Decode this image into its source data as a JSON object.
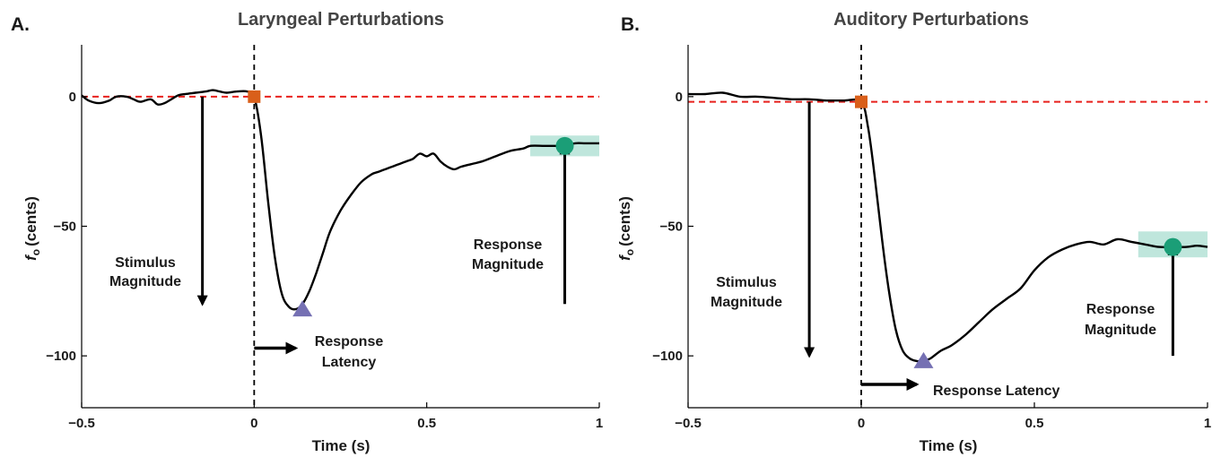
{
  "colors": {
    "trace": "#000000",
    "baseline": "#e8201c",
    "onset": "#d95f1a",
    "peak": "#7570b3",
    "response": "#1b9e77",
    "window": "#bfe6dc"
  },
  "chart_data": [
    {
      "type": "line",
      "panel_label": "A.",
      "title": "Laryngeal Perturbations",
      "xlabel": "Time (s)",
      "ylabel": "f",
      "ylabel_sub": "o",
      "ylabel_unit": "(cents)",
      "xlim": [
        -0.5,
        1.0
      ],
      "ylim": [
        -120,
        20
      ],
      "xticks": [
        -0.5,
        0,
        0.5,
        1
      ],
      "xtick_labels": [
        "-0.5",
        "0",
        "0.5",
        "1"
      ],
      "yticks": [
        0,
        -50,
        -100
      ],
      "ytick_labels": [
        "0",
        "-50",
        "-100"
      ],
      "baseline_y": 0,
      "onset_x": 0,
      "series": [
        {
          "x": [
            -0.5,
            -0.48,
            -0.45,
            -0.42,
            -0.4,
            -0.37,
            -0.35,
            -0.33,
            -0.3,
            -0.28,
            -0.26,
            -0.24,
            -0.22,
            -0.2,
            -0.17,
            -0.14,
            -0.12,
            -0.1,
            -0.08,
            -0.05,
            -0.02,
            0,
            0.02,
            0.04,
            0.06,
            0.08,
            0.1,
            0.12,
            0.14,
            0.16,
            0.18,
            0.2,
            0.22,
            0.25,
            0.28,
            0.31,
            0.34,
            0.36,
            0.38,
            0.4,
            0.42,
            0.44,
            0.46,
            0.48,
            0.5,
            0.52,
            0.54,
            0.56,
            0.58,
            0.6,
            0.63,
            0.66,
            0.7,
            0.74,
            0.78,
            0.8,
            0.84,
            0.87,
            0.9,
            0.93,
            0.96,
            1.0
          ],
          "y": [
            0.5,
            -1.5,
            -2.5,
            -1.5,
            0,
            0,
            -1,
            -2,
            -1,
            -3,
            -2.5,
            -1,
            0.5,
            1,
            1.5,
            2,
            2.5,
            2,
            1.5,
            2,
            2,
            0,
            -15,
            -40,
            -62,
            -76,
            -81,
            -82,
            -80,
            -75,
            -68,
            -60,
            -52,
            -44,
            -38,
            -33,
            -30,
            -29,
            -28,
            -27,
            -26,
            -25,
            -24,
            -22,
            -23,
            -22,
            -25,
            -27,
            -28,
            -27,
            -26,
            -25,
            -23,
            -21,
            -20,
            -19,
            -19,
            -19,
            -19,
            -18,
            -18,
            -18
          ]
        }
      ],
      "markers": {
        "onset": [
          0,
          0
        ],
        "peak": [
          0.14,
          -82
        ],
        "response": [
          0.9,
          -19
        ]
      },
      "response_window": {
        "x": [
          0.8,
          1.0
        ],
        "y": [
          -23,
          -15
        ]
      },
      "arrows": {
        "stimulus": {
          "x": -0.15,
          "from": 0,
          "to": -80
        },
        "response": {
          "x": 0.9,
          "from": -80,
          "to": -19
        },
        "latency": {
          "y": -97,
          "from": 0,
          "to": 0.12
        }
      },
      "annotations": {
        "stimulus_line1": "Stimulus",
        "stimulus_line2": "Magnitude",
        "response_line1": "Response",
        "response_line2": "Magnitude",
        "latency_line1": "Response",
        "latency_line2": "Latency"
      }
    },
    {
      "type": "line",
      "panel_label": "B.",
      "title": "Auditory Perturbations",
      "xlabel": "Time (s)",
      "ylabel": "f",
      "ylabel_sub": "o",
      "ylabel_unit": "(cents)",
      "xlim": [
        -0.5,
        1.0
      ],
      "ylim": [
        -120,
        20
      ],
      "xticks": [
        -0.5,
        0,
        0.5,
        1
      ],
      "xtick_labels": [
        "-0.5",
        "0",
        "0.5",
        "1"
      ],
      "yticks": [
        0,
        -50,
        -100
      ],
      "ytick_labels": [
        "0",
        "-50",
        "-100"
      ],
      "baseline_y": -2,
      "onset_x": 0,
      "series": [
        {
          "x": [
            -0.5,
            -0.45,
            -0.4,
            -0.35,
            -0.3,
            -0.25,
            -0.2,
            -0.15,
            -0.1,
            -0.05,
            0,
            0.02,
            0.04,
            0.06,
            0.08,
            0.1,
            0.12,
            0.14,
            0.16,
            0.18,
            0.2,
            0.23,
            0.26,
            0.3,
            0.34,
            0.38,
            0.42,
            0.46,
            0.5,
            0.54,
            0.58,
            0.62,
            0.66,
            0.7,
            0.74,
            0.78,
            0.82,
            0.86,
            0.9,
            0.94,
            0.97,
            1.0
          ],
          "y": [
            1,
            1,
            1.5,
            0,
            0,
            -0.5,
            -1,
            -1,
            -1.5,
            -1.5,
            -2,
            -12,
            -32,
            -55,
            -75,
            -90,
            -98,
            -101,
            -102,
            -102,
            -101,
            -98,
            -96,
            -92,
            -87,
            -82,
            -78,
            -74,
            -67,
            -62,
            -59,
            -57,
            -56,
            -57,
            -55,
            -56,
            -57,
            -58,
            -58,
            -58,
            -57.5,
            -58
          ]
        }
      ],
      "markers": {
        "onset": [
          0,
          -2
        ],
        "peak": [
          0.18,
          -102
        ],
        "response": [
          0.9,
          -58
        ]
      },
      "response_window": {
        "x": [
          0.8,
          1.0
        ],
        "y": [
          -62,
          -52
        ]
      },
      "arrows": {
        "stimulus": {
          "x": -0.15,
          "from": -2,
          "to": -100
        },
        "response": {
          "x": 0.9,
          "from": -100,
          "to": -58
        },
        "latency": {
          "y": -111,
          "from": 0,
          "to": 0.16
        }
      },
      "annotations": {
        "stimulus_line1": "Stimulus",
        "stimulus_line2": "Magnitude",
        "response_line1": "Response",
        "response_line2": "Magnitude",
        "latency_line1": "Response Latency",
        "latency_line2": ""
      }
    }
  ]
}
